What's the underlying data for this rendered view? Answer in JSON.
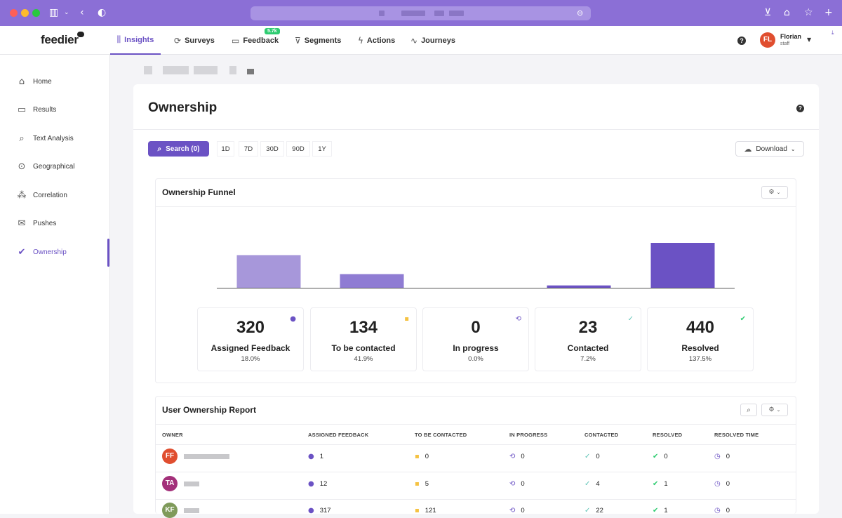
{
  "browser": {
    "accent": "#8b6fd6"
  },
  "app": {
    "logo": "feedier",
    "nav": [
      {
        "label": "Insights",
        "icon": "chart-icon",
        "glyph": "⫼",
        "active": true
      },
      {
        "label": "Surveys",
        "icon": "surveys-icon",
        "glyph": "⟳",
        "active": false
      },
      {
        "label": "Feedback",
        "icon": "chat-icon",
        "glyph": "▭",
        "active": false
      },
      {
        "label": "Segments",
        "icon": "filter-icon",
        "glyph": "⊽",
        "active": false
      },
      {
        "label": "Actions",
        "icon": "bolt-icon",
        "glyph": "ϟ",
        "active": false
      },
      {
        "label": "Journeys",
        "icon": "pulse-icon",
        "glyph": "∿",
        "active": false
      }
    ],
    "feedback_badge": "5.7k",
    "user": {
      "initials": "FL",
      "name": "Florian",
      "role": "staff",
      "color": "#e04e2f"
    }
  },
  "sidebar": {
    "items": [
      {
        "label": "Home",
        "icon": "home-icon",
        "glyph": "⌂"
      },
      {
        "label": "Results",
        "icon": "results-icon",
        "glyph": "▭"
      },
      {
        "label": "Text Analysis",
        "icon": "text-analysis-icon",
        "glyph": "⌕"
      },
      {
        "label": "Geographical",
        "icon": "map-pin-icon",
        "glyph": "⊙"
      },
      {
        "label": "Correlation",
        "icon": "correlation-icon",
        "glyph": "⁂"
      },
      {
        "label": "Pushes",
        "icon": "envelope-icon",
        "glyph": "✉"
      },
      {
        "label": "Ownership",
        "icon": "clipboard-check-icon",
        "glyph": "✔"
      }
    ],
    "active": "Ownership"
  },
  "page": {
    "title": "Ownership",
    "search_label": "Search (0)",
    "ranges": [
      "1D",
      "7D",
      "30D",
      "90D",
      "1Y"
    ],
    "download_label": "Download"
  },
  "funnel": {
    "title": "Ownership Funnel",
    "bar_colors": [
      "#a797da",
      "#8f7cd3",
      "#6b52c4",
      "#6b52c4",
      "#6b52c4"
    ],
    "stats": [
      {
        "value": "320",
        "label": "Assigned Feedback",
        "pct": "18.0%",
        "icon": "user-circle-icon",
        "glyph": "●",
        "color": "#6b52c4"
      },
      {
        "value": "134",
        "label": "To be contacted",
        "pct": "41.9%",
        "icon": "message-icon",
        "glyph": "▪",
        "color": "#f5c242"
      },
      {
        "value": "0",
        "label": "In progress",
        "pct": "0.0%",
        "icon": "sync-icon",
        "glyph": "⟲",
        "color": "#6b52c4"
      },
      {
        "value": "23",
        "label": "Contacted",
        "pct": "7.2%",
        "icon": "user-check-icon",
        "glyph": "✓",
        "color": "#5ec4b6"
      },
      {
        "value": "440",
        "label": "Resolved",
        "pct": "137.5%",
        "icon": "check-circle-icon",
        "glyph": "✔",
        "color": "#2ecc71"
      }
    ]
  },
  "chart_data": {
    "type": "bar",
    "categories": [
      "Assigned Feedback",
      "To be contacted",
      "In progress",
      "Contacted",
      "Resolved"
    ],
    "values": [
      320,
      134,
      0,
      23,
      440
    ],
    "title": "",
    "xlabel": "",
    "ylabel": "",
    "ylim": [
      0,
      440
    ]
  },
  "report": {
    "title": "User Ownership Report",
    "columns": [
      "OWNER",
      "ASSIGNED FEEDBACK",
      "TO BE CONTACTED",
      "IN PROGRESS",
      "CONTACTED",
      "RESOLVED",
      "RESOLVED TIME"
    ],
    "rows": [
      {
        "initials": "FF",
        "color": "#e04e2f",
        "assigned": "1",
        "to_contact": "0",
        "in_progress": "0",
        "contacted": "0",
        "resolved": "0",
        "resolved_time": "0"
      },
      {
        "initials": "TA",
        "color": "#a3307a",
        "assigned": "12",
        "to_contact": "5",
        "in_progress": "0",
        "contacted": "4",
        "resolved": "1",
        "resolved_time": "0"
      },
      {
        "initials": "KF",
        "color": "#7f9a5a",
        "assigned": "317",
        "to_contact": "121",
        "in_progress": "0",
        "contacted": "22",
        "resolved": "1",
        "resolved_time": "0"
      }
    ]
  }
}
